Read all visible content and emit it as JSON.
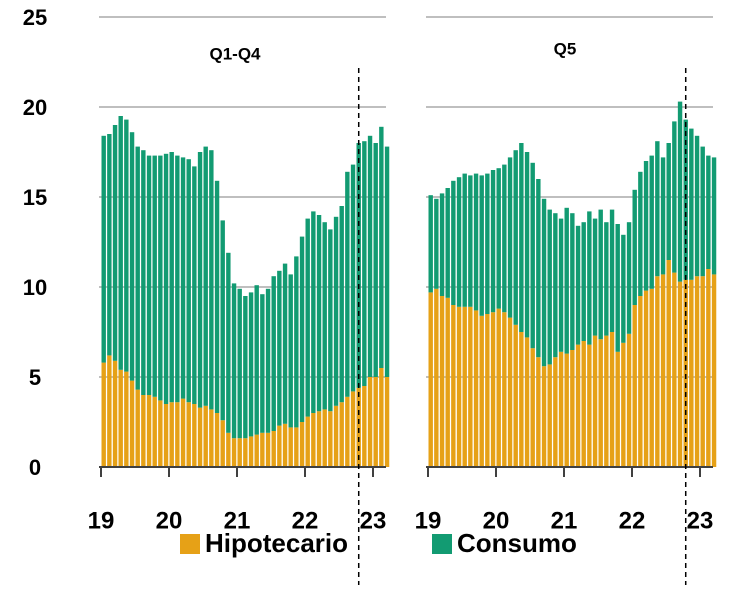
{
  "chart_data": [
    {
      "type": "bar",
      "stacked": true,
      "title": "Q1-Q4",
      "x": [
        2019,
        2019.083,
        2019.167,
        2019.25,
        2019.333,
        2019.417,
        2019.5,
        2019.583,
        2019.667,
        2019.75,
        2019.833,
        2019.917,
        2020,
        2020.083,
        2020.167,
        2020.25,
        2020.333,
        2020.417,
        2020.5,
        2020.583,
        2020.667,
        2020.75,
        2020.833,
        2020.917,
        2021,
        2021.083,
        2021.167,
        2021.25,
        2021.333,
        2021.417,
        2021.5,
        2021.583,
        2021.667,
        2021.75,
        2021.833,
        2021.917,
        2022,
        2022.083,
        2022.167,
        2022.25,
        2022.333,
        2022.417,
        2022.5,
        2022.583,
        2022.667,
        2022.75,
        2022.833,
        2022.917,
        2023,
        2023.083,
        2023.167
      ],
      "series": [
        {
          "name": "Hipotecario",
          "color": "#e6a117",
          "values": [
            5.8,
            6.2,
            5.9,
            5.4,
            5.3,
            4.8,
            4.3,
            4.0,
            4.0,
            3.9,
            3.7,
            3.5,
            3.6,
            3.6,
            3.8,
            3.6,
            3.5,
            3.3,
            3.4,
            3.2,
            3.0,
            2.6,
            1.9,
            1.6,
            1.6,
            1.6,
            1.7,
            1.8,
            1.9,
            1.9,
            2.0,
            2.3,
            2.4,
            2.2,
            2.2,
            2.5,
            2.8,
            3.0,
            3.1,
            3.2,
            3.1,
            3.4,
            3.6,
            3.9,
            4.2,
            4.4,
            4.5,
            5.0,
            5.0,
            5.5,
            5.0
          ]
        },
        {
          "name": "Consumo",
          "color": "#129b72",
          "values": [
            12.6,
            12.3,
            13.1,
            14.1,
            14.0,
            13.8,
            13.5,
            13.6,
            13.3,
            13.4,
            13.6,
            13.9,
            13.9,
            13.7,
            13.4,
            13.5,
            13.2,
            14.2,
            14.4,
            14.4,
            12.9,
            11.1,
            10.0,
            8.6,
            8.3,
            7.9,
            8.0,
            8.3,
            7.7,
            8.0,
            8.6,
            8.6,
            8.9,
            8.5,
            9.5,
            10.3,
            11.0,
            11.2,
            10.9,
            10.4,
            10.1,
            10.5,
            10.9,
            12.5,
            12.6,
            13.6,
            13.6,
            13.4,
            13.0,
            13.4,
            12.8
          ]
        }
      ],
      "xlim": [
        2019,
        2023.25
      ],
      "xticks": [
        {
          "value": 2019,
          "label": "19"
        },
        {
          "value": 2020,
          "label": "20"
        },
        {
          "value": 2021,
          "label": "21"
        },
        {
          "value": 2022,
          "label": "22"
        },
        {
          "value": 2023,
          "label": "23"
        }
      ],
      "ylim": [
        0,
        25
      ],
      "yticks": [
        0,
        5,
        10,
        15,
        20,
        25
      ],
      "grid": true,
      "vline": 2022.79
    },
    {
      "type": "bar",
      "stacked": true,
      "title": "Q5",
      "x": [
        2019,
        2019.083,
        2019.167,
        2019.25,
        2019.333,
        2019.417,
        2019.5,
        2019.583,
        2019.667,
        2019.75,
        2019.833,
        2019.917,
        2020,
        2020.083,
        2020.167,
        2020.25,
        2020.333,
        2020.417,
        2020.5,
        2020.583,
        2020.667,
        2020.75,
        2020.833,
        2020.917,
        2021,
        2021.083,
        2021.167,
        2021.25,
        2021.333,
        2021.417,
        2021.5,
        2021.583,
        2021.667,
        2021.75,
        2021.833,
        2021.917,
        2022,
        2022.083,
        2022.167,
        2022.25,
        2022.333,
        2022.417,
        2022.5,
        2022.583,
        2022.667,
        2022.75,
        2022.833,
        2022.917,
        2023,
        2023.083,
        2023.167
      ],
      "series": [
        {
          "color": "#e6a117",
          "values": [
            9.7,
            9.9,
            9.5,
            9.4,
            9.0,
            8.9,
            8.9,
            8.9,
            8.7,
            8.4,
            8.5,
            8.6,
            8.8,
            8.6,
            8.3,
            7.9,
            7.5,
            7.2,
            6.6,
            6.1,
            5.6,
            5.7,
            6.1,
            6.4,
            6.3,
            6.5,
            6.8,
            7.0,
            6.8,
            7.3,
            7.1,
            7.3,
            7.5,
            6.4,
            6.9,
            7.4,
            9.0,
            9.5,
            9.8,
            9.9,
            10.6,
            10.7,
            11.5,
            10.8,
            10.3,
            10.4,
            10.4,
            10.6,
            10.6,
            11.0,
            10.7
          ]
        },
        {
          "color": "#129b72",
          "values": [
            5.4,
            5.0,
            5.7,
            6.1,
            6.9,
            7.2,
            7.4,
            7.3,
            7.6,
            7.8,
            7.8,
            7.9,
            7.8,
            8.2,
            8.9,
            9.7,
            10.5,
            10.3,
            10.3,
            9.9,
            9.3,
            8.6,
            8.0,
            7.4,
            8.1,
            7.6,
            6.6,
            6.6,
            7.4,
            6.5,
            7.2,
            6.3,
            6.8,
            7.1,
            6.0,
            6.2,
            6.4,
            6.9,
            7.2,
            7.4,
            7.5,
            6.5,
            6.5,
            8.4,
            10.0,
            8.9,
            8.4,
            7.8,
            7.2,
            6.3,
            6.5
          ]
        }
      ],
      "xlim": [
        2019,
        2023.25
      ],
      "xticks": [
        {
          "value": 2019,
          "label": "19"
        },
        {
          "value": 2020,
          "label": "20"
        },
        {
          "value": 2021,
          "label": "21"
        },
        {
          "value": 2022,
          "label": "22"
        },
        {
          "value": 2023,
          "label": "23"
        }
      ],
      "ylim": [
        0,
        25
      ],
      "yticks": [
        0,
        5,
        10,
        15,
        20,
        25
      ],
      "grid": true,
      "vline": 2022.79
    }
  ]
}
